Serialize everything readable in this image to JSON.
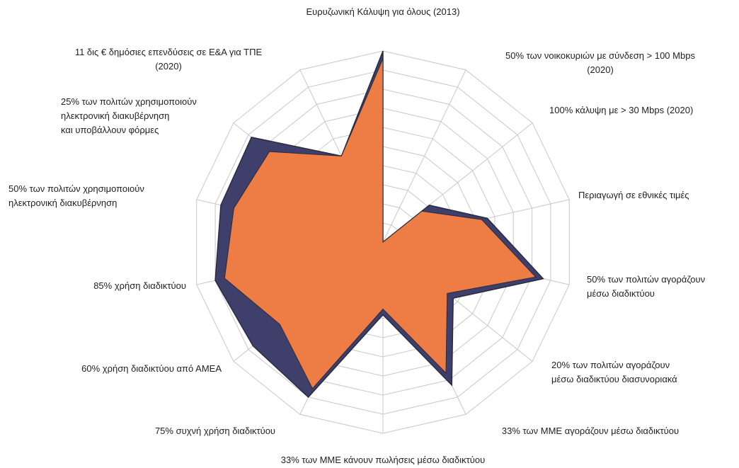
{
  "chart_data": {
    "type": "radar",
    "categories": [
      "Ευρυζωνική Κάλυψη για όλους (2013)",
      "50% των νοικοκυριών με σύνδεση > 100 Mbps\n(2020)",
      "100% κάλυψη με > 30 Mbps (2020)",
      "Περιαγωγή σε εθνικές τιμές",
      "50% των πολιτών αγοράζουν\nμέσω διαδικτύου",
      "20% των πολιτών αγοράζουν\nμέσω διαδικτύου διασυνοριακά",
      "33% των ΜΜΕ αγοράζουν μέσω διαδικτύου",
      "33% των ΜΜΕ κάνουν πωλήσεις μέσω διαδικτύου",
      "75% συχνή χρήση διαδικτύου",
      "60% χρήση διαδικτύου από ΑΜΕΑ",
      "85% χρήση διαδικτύου",
      "50% των πολιτών χρησιμοποιούν\nηλεκτρονική διακυβέρνηση",
      "25% των πολιτών χρησιμοποιούν\nηλεκτρονική διακυβέρνηση\nκαι υποβάλλουν φόρμες",
      "11 δις € δημόσιες επενδύσεις σε Ε&Α για ΤΠΕ\n(2020)"
    ],
    "series": [
      {
        "color": "#3f3f6b",
        "values": [
          100,
          0,
          31,
          56,
          86,
          47,
          83,
          38,
          90,
          87,
          90,
          87,
          88,
          50
        ]
      },
      {
        "color": "#ed7d45",
        "values": [
          96,
          0,
          26,
          53,
          82,
          43,
          76,
          35,
          85,
          69,
          85,
          80,
          76,
          50
        ]
      }
    ],
    "ylim": [
      0,
      100
    ],
    "yticks": [
      0,
      10,
      20,
      30,
      40,
      50,
      60,
      70,
      80,
      90,
      100
    ],
    "grid": true
  }
}
